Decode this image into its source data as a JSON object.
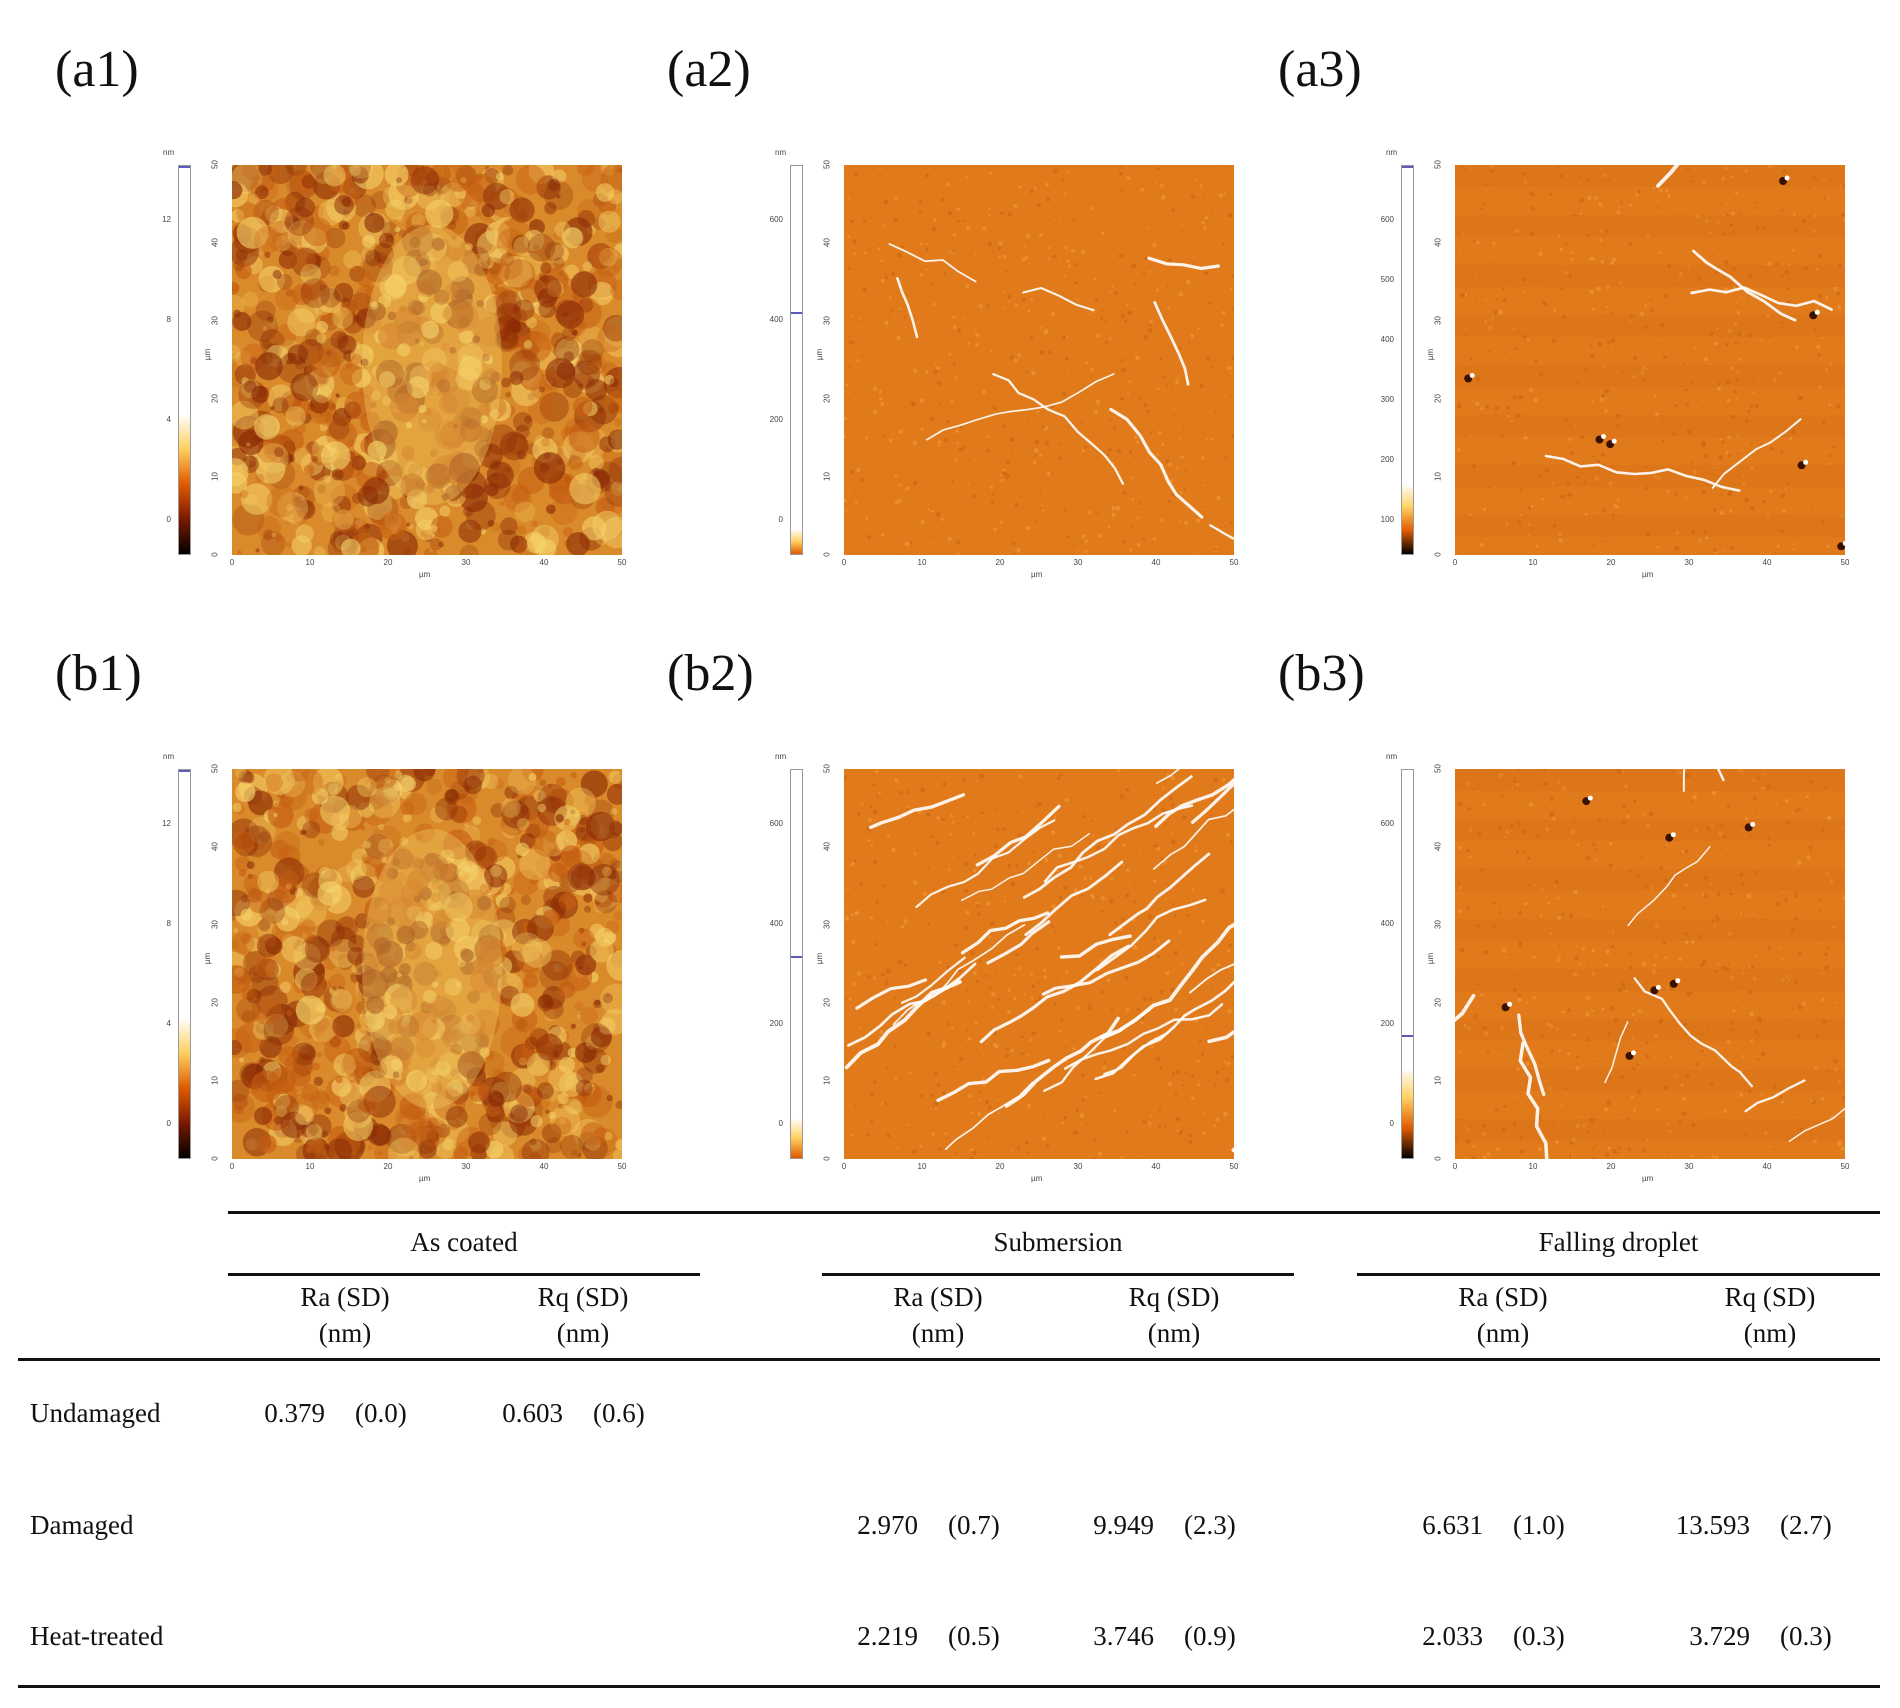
{
  "panels": [
    {
      "label": "(a1)",
      "colorbar_unit": "nm",
      "colorbar_ticks": [
        "12",
        "8",
        "4",
        "0"
      ],
      "axis_unit": "µm",
      "axis_ticks": [
        "0",
        "10",
        "20",
        "30",
        "40",
        "50"
      ],
      "image": "afm-height-map-as-coated-undamaged"
    },
    {
      "label": "(a2)",
      "colorbar_unit": "nm",
      "colorbar_ticks": [
        "600",
        "400",
        "200",
        "0"
      ],
      "axis_unit": "µm",
      "axis_ticks": [
        "0",
        "10",
        "20",
        "30",
        "40",
        "50"
      ],
      "image": "afm-height-map-submersion-damaged"
    },
    {
      "label": "(a3)",
      "colorbar_unit": "nm",
      "colorbar_ticks": [
        "600",
        "500",
        "400",
        "300",
        "200",
        "100"
      ],
      "axis_unit": "µm",
      "axis_ticks": [
        "0",
        "10",
        "20",
        "30",
        "40",
        "50"
      ],
      "image": "afm-height-map-falling-droplet-damaged"
    },
    {
      "label": "(b1)",
      "colorbar_unit": "nm",
      "colorbar_ticks": [
        "12",
        "8",
        "4",
        "0"
      ],
      "axis_unit": "µm",
      "axis_ticks": [
        "0",
        "10",
        "20",
        "30",
        "40",
        "50"
      ],
      "image": "afm-height-map-as-coated-undamaged"
    },
    {
      "label": "(b2)",
      "colorbar_unit": "nm",
      "colorbar_ticks": [
        "600",
        "400",
        "200",
        "0"
      ],
      "axis_unit": "µm",
      "axis_ticks": [
        "0",
        "10",
        "20",
        "30",
        "40",
        "50"
      ],
      "image": "afm-height-map-submersion-heat-treated"
    },
    {
      "label": "(b3)",
      "colorbar_unit": "nm",
      "colorbar_ticks": [
        "600",
        "400",
        "200",
        "0"
      ],
      "axis_unit": "µm",
      "axis_ticks": [
        "0",
        "10",
        "20",
        "30",
        "40",
        "50"
      ],
      "image": "afm-height-map-falling-droplet-heat-treated"
    }
  ],
  "colors": {
    "afm_base": "#e07a1a",
    "afm_light": "#f6d36a",
    "afm_dark": "#8a2a05",
    "afm_white": "#ffffff"
  },
  "table": {
    "groups": [
      "As coated",
      "Submersion",
      "Falling droplet"
    ],
    "subheaders": [
      {
        "line1": "Ra (SD)",
        "line2": "(nm)"
      },
      {
        "line1": "Rq (SD)",
        "line2": "(nm)"
      },
      {
        "line1": "Ra (SD)",
        "line2": "(nm)"
      },
      {
        "line1": "Rq (SD)",
        "line2": "(nm)"
      },
      {
        "line1": "Ra (SD)",
        "line2": "(nm)"
      },
      {
        "line1": "Rq (SD)",
        "line2": "(nm)"
      }
    ],
    "rows": [
      {
        "label": "Undamaged",
        "cells": [
          {
            "v": "0.379",
            "sd": "(0.0)"
          },
          {
            "v": "0.603",
            "sd": "(0.6)"
          },
          null,
          null,
          null,
          null
        ]
      },
      {
        "label": "Damaged",
        "cells": [
          null,
          null,
          {
            "v": "2.970",
            "sd": "(0.7)"
          },
          {
            "v": "9.949",
            "sd": "(2.3)"
          },
          {
            "v": "6.631",
            "sd": "(1.0)"
          },
          {
            "v": "13.593",
            "sd": "(2.7)"
          }
        ]
      },
      {
        "label": "Heat-treated",
        "cells": [
          null,
          null,
          {
            "v": "2.219",
            "sd": "(0.5)"
          },
          {
            "v": "3.746",
            "sd": "(0.9)"
          },
          {
            "v": "2.033",
            "sd": "(0.3)"
          },
          {
            "v": "3.729",
            "sd": "(0.3)"
          }
        ]
      }
    ]
  }
}
